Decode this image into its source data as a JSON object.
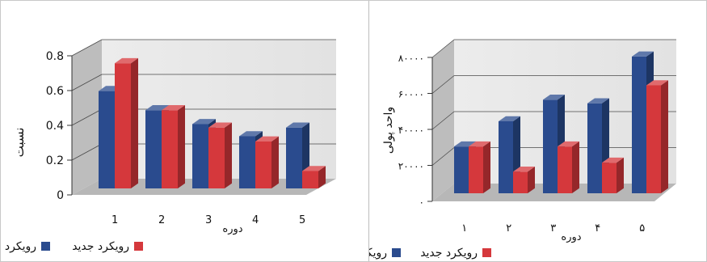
{
  "chart_data": [
    {
      "type": "bar",
      "title": "",
      "xlabel": "دوره",
      "ylabel": "نسبت",
      "categories": [
        "1",
        "2",
        "3",
        "4",
        "5"
      ],
      "ytick_labels": [
        "0",
        "0.2",
        "0.4",
        "0.6",
        "0.8"
      ],
      "ylim": [
        0,
        0.8
      ],
      "grid": true,
      "legend_position": "bottom",
      "series": [
        {
          "name": "رویکرد سنتی",
          "color": "#2a4b8e",
          "values": [
            0.56,
            0.45,
            0.37,
            0.3,
            0.35
          ]
        },
        {
          "name": "رویکرد جدید",
          "color": "#d5383c",
          "values": [
            0.72,
            0.45,
            0.35,
            0.27,
            0.1
          ]
        }
      ]
    },
    {
      "type": "bar",
      "title": "",
      "xlabel": "دوره",
      "ylabel": "واحد پولی",
      "categories": [
        "۱",
        "۲",
        "۳",
        "۴",
        "۵"
      ],
      "ytick_labels": [
        "۰",
        "۲۰۰۰۰",
        "۴۰۰۰۰",
        "۶۰۰۰۰",
        "۸۰۰۰۰"
      ],
      "ylim": [
        0,
        80000
      ],
      "grid": true,
      "legend_position": "bottom",
      "series": [
        {
          "name": "رویکرد سنتی",
          "color": "#2a4b8e",
          "values": [
            26000,
            40000,
            52000,
            50000,
            76000
          ]
        },
        {
          "name": "رویکرد جدید",
          "color": "#d5383c",
          "values": [
            26000,
            12000,
            26000,
            17000,
            60000
          ]
        }
      ]
    }
  ]
}
